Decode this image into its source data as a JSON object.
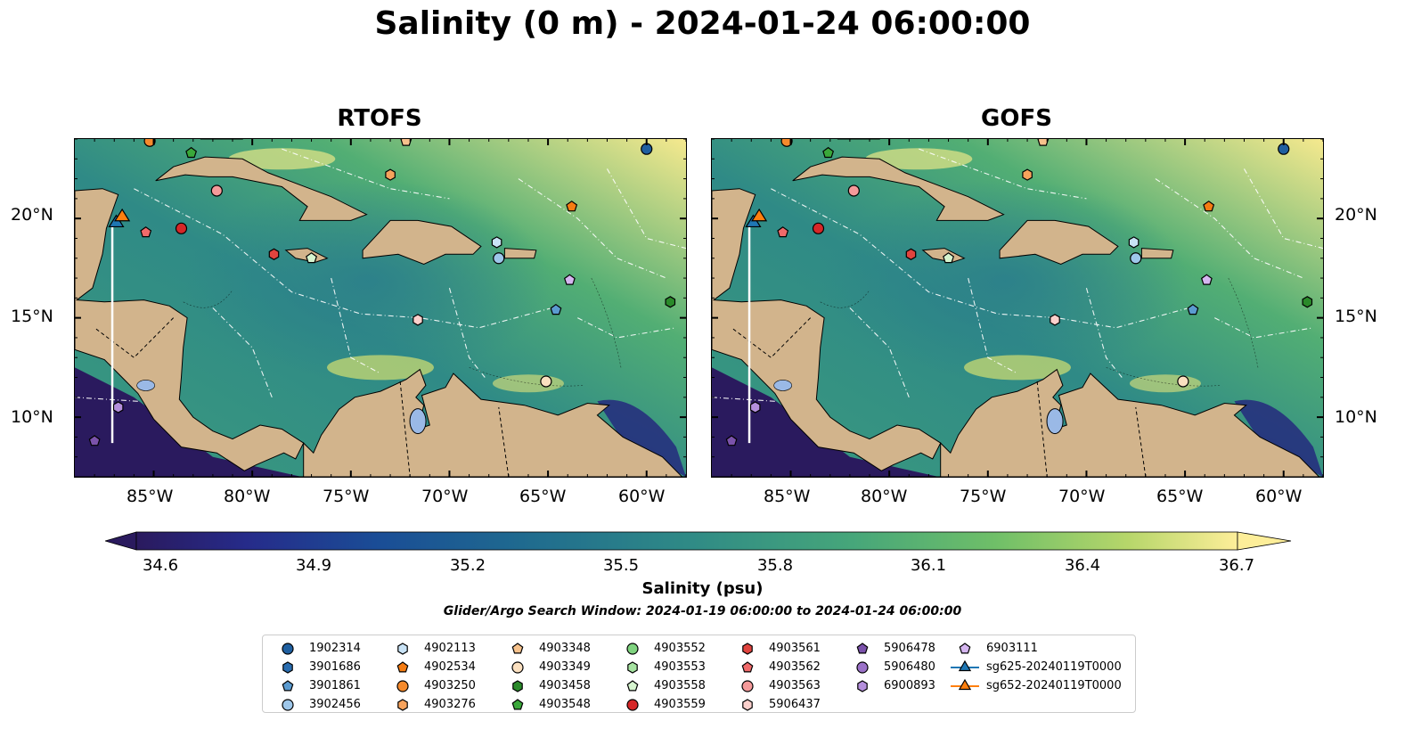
{
  "title": "Salinity (0 m) - 2024-01-24 06:00:00",
  "panels": [
    {
      "name": "RTOFS"
    },
    {
      "name": "GOFS"
    }
  ],
  "axes": {
    "x_ticks": [
      "85°W",
      "80°W",
      "75°W",
      "70°W",
      "65°W",
      "60°W"
    ],
    "y_ticks": [
      "20°N",
      "15°N",
      "10°N"
    ],
    "lon_range": [
      -89,
      -58
    ],
    "lat_range": [
      7,
      24
    ]
  },
  "colorbar": {
    "label": "Salinity (psu)",
    "ticks": [
      "34.6",
      "34.9",
      "35.2",
      "35.5",
      "35.8",
      "36.1",
      "36.4",
      "36.7"
    ],
    "range": [
      34.6,
      36.7
    ],
    "colormap": "haline"
  },
  "search_window": "Glider/Argo Search Window: 2024-01-19 06:00:00 to 2024-01-24 06:00:00",
  "colors": {
    "land": "#d2b48c",
    "lakes": "#9ab9e6",
    "salinity_low": "#2a1a5e",
    "salinity_high": "#fdee99"
  },
  "legend": [
    {
      "label": "1902314",
      "marker": "circle",
      "color": "#1f5fa0",
      "lon": -60.0,
      "lat": 23.5
    },
    {
      "label": "3901686",
      "marker": "hexagon",
      "color": "#2a6db0",
      "lon": null,
      "lat": null
    },
    {
      "label": "3901861",
      "marker": "pentagon",
      "color": "#5b9bd0",
      "lon": -64.6,
      "lat": 15.4
    },
    {
      "label": "3902456",
      "marker": "circle",
      "color": "#9ec7ea",
      "lon": -67.5,
      "lat": 18.0
    },
    {
      "label": "4902113",
      "marker": "hexagon",
      "color": "#c9e3f6",
      "lon": -67.6,
      "lat": 18.8
    },
    {
      "label": "4902534",
      "marker": "pentagon",
      "color": "#f57c12",
      "lon": -63.8,
      "lat": 20.6
    },
    {
      "label": "4903250",
      "marker": "circle",
      "color": "#f58a2c",
      "lon": -85.2,
      "lat": 23.9
    },
    {
      "label": "4903276",
      "marker": "hexagon",
      "color": "#f7a35c",
      "lon": -73.0,
      "lat": 22.2
    },
    {
      "label": "4903348",
      "marker": "pentagon",
      "color": "#f7c28c",
      "lon": -72.2,
      "lat": 23.9
    },
    {
      "label": "4903349",
      "marker": "circle",
      "color": "#fbe0c0",
      "lon": -65.1,
      "lat": 11.8
    },
    {
      "label": "4903458",
      "marker": "hexagon",
      "color": "#2a8a2a",
      "lon": -58.8,
      "lat": 15.8
    },
    {
      "label": "4903548",
      "marker": "pentagon",
      "color": "#3aa83a",
      "lon": -83.1,
      "lat": 23.3
    },
    {
      "label": "4903552",
      "marker": "circle",
      "color": "#7fd37f",
      "lon": null,
      "lat": null
    },
    {
      "label": "4903553",
      "marker": "hexagon",
      "color": "#a6e3a1",
      "lon": null,
      "lat": null
    },
    {
      "label": "4903558",
      "marker": "pentagon",
      "color": "#d6f5cf",
      "lon": -77.0,
      "lat": 18.0
    },
    {
      "label": "4903559",
      "marker": "circle",
      "color": "#d62728",
      "lon": -83.6,
      "lat": 19.5
    },
    {
      "label": "4903561",
      "marker": "hexagon",
      "color": "#e0443e",
      "lon": -78.9,
      "lat": 18.2
    },
    {
      "label": "4903562",
      "marker": "pentagon",
      "color": "#f06a6a",
      "lon": -85.4,
      "lat": 19.3
    },
    {
      "label": "4903563",
      "marker": "circle",
      "color": "#f59a9a",
      "lon": -81.8,
      "lat": 21.4
    },
    {
      "label": "5906437",
      "marker": "hexagon",
      "color": "#fbd0cc",
      "lon": -71.6,
      "lat": 14.9
    },
    {
      "label": "5906478",
      "marker": "pentagon",
      "color": "#7b52ab",
      "lon": -88.0,
      "lat": 8.8
    },
    {
      "label": "5906480",
      "marker": "circle",
      "color": "#9b72c8",
      "lon": null,
      "lat": null
    },
    {
      "label": "6900893",
      "marker": "hexagon",
      "color": "#b48fdc",
      "lon": -86.8,
      "lat": 10.5
    },
    {
      "label": "6903111",
      "marker": "pentagon",
      "color": "#d5b6f0",
      "lon": -63.9,
      "lat": 16.9
    },
    {
      "label": "sg625-20240119T0000",
      "marker": "triangle-line",
      "color": "#1f77b4",
      "lon": -86.9,
      "lat": 19.8
    },
    {
      "label": "sg652-20240119T0000",
      "marker": "triangle-line",
      "color": "#ff7f0e",
      "lon": -86.6,
      "lat": 20.1
    }
  ]
}
